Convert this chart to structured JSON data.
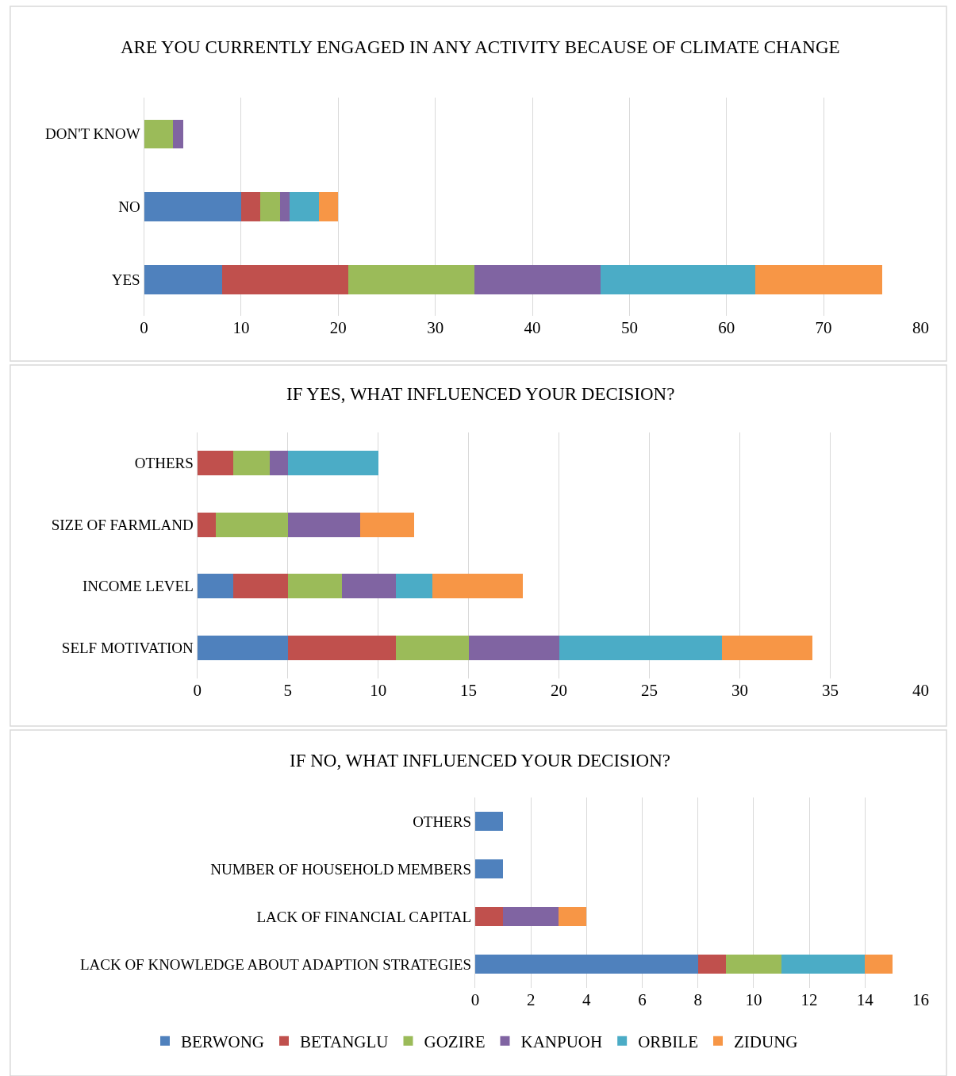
{
  "chart_data": [
    {
      "type": "bar",
      "orientation": "horizontal",
      "stacked": true,
      "title": "ARE YOU CURRENTLY ENGAGED IN ANY ACTIVITY BECAUSE OF CLIMATE CHANGE",
      "categories": [
        "DON'T KNOW",
        "NO",
        "YES"
      ],
      "xlim": [
        0,
        80
      ],
      "xticks": [
        0,
        10,
        20,
        30,
        40,
        50,
        60,
        70,
        80
      ],
      "grid": "x",
      "legend": "bottom",
      "series": [
        {
          "name": "BERWONG",
          "color": "#4f81bd",
          "values": [
            null,
            10,
            8
          ]
        },
        {
          "name": "BETANGLU",
          "color": "#c0504d",
          "values": [
            null,
            2,
            13
          ]
        },
        {
          "name": "GOZIRE",
          "color": "#9bbb59",
          "values": [
            3,
            2,
            13
          ]
        },
        {
          "name": "KANPUOH",
          "color": "#8064a2",
          "values": [
            1,
            1,
            13
          ]
        },
        {
          "name": "ORBILE",
          "color": "#4bacc6",
          "values": [
            null,
            3,
            16
          ]
        },
        {
          "name": "ZIDUNG",
          "color": "#f79646",
          "values": [
            null,
            2,
            13
          ]
        }
      ]
    },
    {
      "type": "bar",
      "orientation": "horizontal",
      "stacked": true,
      "title": "IF YES, WHAT INFLUENCED YOUR DECISION?",
      "categories": [
        "OTHERS",
        "SIZE OF FARMLAND",
        "INCOME LEVEL",
        "SELF MOTIVATION"
      ],
      "xlim": [
        0,
        40
      ],
      "xticks": [
        0,
        5,
        10,
        15,
        20,
        25,
        30,
        35,
        40
      ],
      "grid": "x",
      "legend": "bottom",
      "series": [
        {
          "name": "BERWONG",
          "color": "#4f81bd",
          "values": [
            null,
            null,
            2,
            5
          ]
        },
        {
          "name": "BETANGLU",
          "color": "#c0504d",
          "values": [
            2,
            1,
            3,
            6
          ]
        },
        {
          "name": "GOZIRE",
          "color": "#9bbb59",
          "values": [
            2,
            4,
            3,
            4
          ]
        },
        {
          "name": "KANPUOH",
          "color": "#8064a2",
          "values": [
            1,
            4,
            3,
            5
          ]
        },
        {
          "name": "ORBILE",
          "color": "#4bacc6",
          "values": [
            5,
            null,
            2,
            9
          ]
        },
        {
          "name": "ZIDUNG",
          "color": "#f79646",
          "values": [
            null,
            3,
            5,
            5
          ]
        }
      ]
    },
    {
      "type": "bar",
      "orientation": "horizontal",
      "stacked": true,
      "title": "IF NO, WHAT INFLUENCED YOUR DECISION?",
      "categories": [
        "OTHERS",
        "NUMBER OF HOUSEHOLD MEMBERS",
        "LACK OF FINANCIAL CAPITAL",
        "LACK OF KNOWLEDGE ABOUT ADAPTION STRATEGIES"
      ],
      "xlim": [
        0,
        16
      ],
      "xticks": [
        0,
        2,
        4,
        6,
        8,
        10,
        12,
        14,
        16
      ],
      "grid": "x",
      "legend": "bottom",
      "series": [
        {
          "name": "BERWONG",
          "color": "#4f81bd",
          "values": [
            1,
            1,
            null,
            8
          ]
        },
        {
          "name": "BETANGLU",
          "color": "#c0504d",
          "values": [
            null,
            null,
            1,
            1
          ]
        },
        {
          "name": "GOZIRE",
          "color": "#9bbb59",
          "values": [
            null,
            null,
            null,
            2
          ]
        },
        {
          "name": "KANPUOH",
          "color": "#8064a2",
          "values": [
            null,
            null,
            2,
            null
          ]
        },
        {
          "name": "ORBILE",
          "color": "#4bacc6",
          "values": [
            null,
            null,
            null,
            3
          ]
        },
        {
          "name": "ZIDUNG",
          "color": "#f79646",
          "values": [
            null,
            null,
            1,
            1
          ]
        }
      ]
    }
  ]
}
